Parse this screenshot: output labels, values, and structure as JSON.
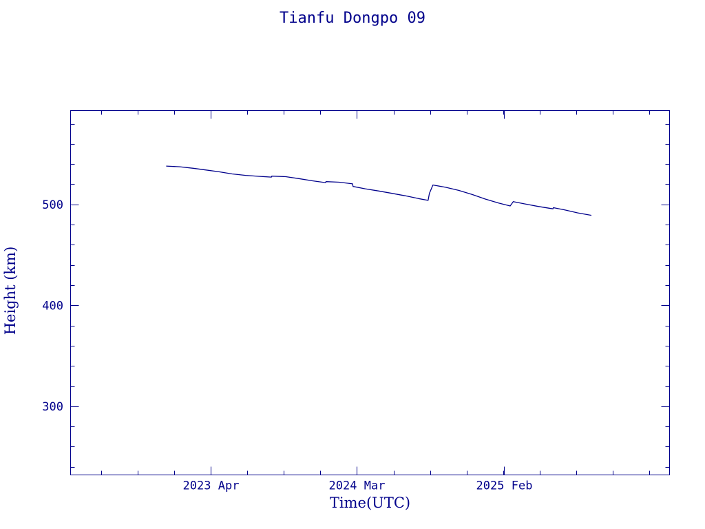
{
  "chart_data": {
    "type": "line",
    "title": "Tianfu Dongpo 09",
    "xlabel": "Time(UTC)",
    "ylabel": "Height (km)",
    "ylim": [
      232,
      593
    ],
    "xlim": [
      "2022-05-15",
      "2026-02-15"
    ],
    "x_ticks": [
      {
        "label": "2023 Apr",
        "date": "2023-04-01"
      },
      {
        "label": "2024 Mar",
        "date": "2024-03-01"
      },
      {
        "label": "2025 Feb",
        "date": "2025-02-01"
      }
    ],
    "y_ticks": [
      300,
      400,
      500
    ],
    "grid": false,
    "color": "#00008b",
    "series": [
      {
        "points": [
          [
            "2022-12-20",
            538.0
          ],
          [
            "2023-01-20",
            537.3
          ],
          [
            "2023-02-20",
            535.8
          ],
          [
            "2023-03-20",
            534.2
          ],
          [
            "2023-04-20",
            532.3
          ],
          [
            "2023-05-20",
            530.2
          ],
          [
            "2023-06-20",
            528.8
          ],
          [
            "2023-07-20",
            527.8
          ],
          [
            "2023-08-18",
            527.1
          ],
          [
            "2023-08-19",
            528.0
          ],
          [
            "2023-09-20",
            527.5
          ],
          [
            "2023-10-20",
            525.6
          ],
          [
            "2023-11-20",
            523.4
          ],
          [
            "2023-12-20",
            521.6
          ],
          [
            "2023-12-21",
            522.6
          ],
          [
            "2024-01-20",
            522.0
          ],
          [
            "2024-02-20",
            520.4
          ],
          [
            "2024-02-21",
            517.8
          ],
          [
            "2024-03-20",
            515.5
          ],
          [
            "2024-04-20",
            513.3
          ],
          [
            "2024-05-20",
            511.0
          ],
          [
            "2024-06-20",
            508.5
          ],
          [
            "2024-07-20",
            505.8
          ],
          [
            "2024-08-11",
            504.0
          ],
          [
            "2024-08-14",
            511.0
          ],
          [
            "2024-08-22",
            519.2
          ],
          [
            "2024-09-20",
            517.0
          ],
          [
            "2024-10-20",
            513.9
          ],
          [
            "2024-11-20",
            509.8
          ],
          [
            "2024-12-20",
            505.3
          ],
          [
            "2025-01-20",
            501.3
          ],
          [
            "2025-02-15",
            498.5
          ],
          [
            "2025-02-22",
            502.8
          ],
          [
            "2025-03-20",
            500.5
          ],
          [
            "2025-04-20",
            498.0
          ],
          [
            "2025-05-24",
            495.6
          ],
          [
            "2025-05-25",
            496.8
          ],
          [
            "2025-06-20",
            494.5
          ],
          [
            "2025-07-20",
            491.6
          ],
          [
            "2025-08-20",
            489.2
          ]
        ]
      }
    ]
  }
}
